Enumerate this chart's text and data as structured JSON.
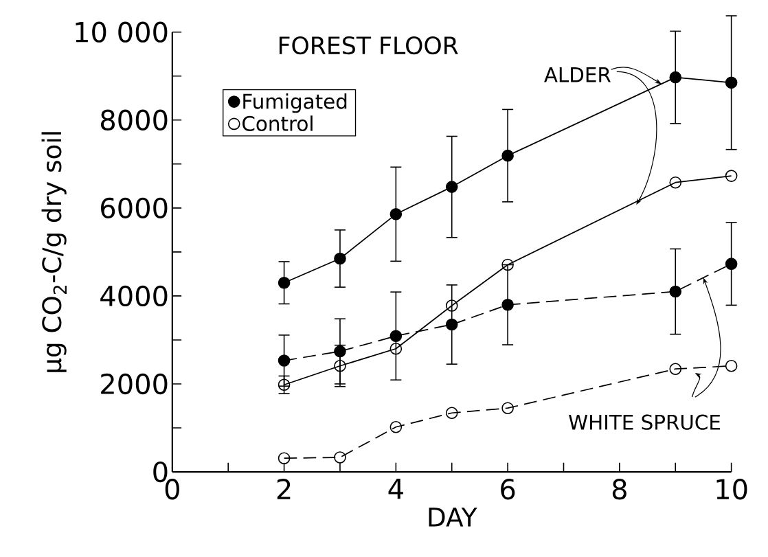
{
  "chart_data": {
    "type": "line",
    "title": "FOREST FLOOR",
    "xlabel": "DAY",
    "ylabel": "μg CO$_{2}$-C/g dry soil",
    "xlim": [
      0,
      10
    ],
    "ylim": [
      0,
      10000
    ],
    "xticks": [
      0,
      {
        "value": 1,
        "label": null
      },
      2,
      {
        "value": 3,
        "label": null
      },
      4,
      {
        "value": 5,
        "label": null
      },
      6,
      {
        "value": 7,
        "label": null
      },
      8,
      {
        "value": 9,
        "label": null
      },
      10
    ],
    "yticks": [
      0,
      {
        "value": 1000,
        "label": null
      },
      2000,
      {
        "value": 3000,
        "label": null
      },
      4000,
      {
        "value": 5000,
        "label": null
      },
      6000,
      {
        "value": 7000,
        "label": null
      },
      8000,
      {
        "value": 9000,
        "label": null
      },
      {
        "value": 10000,
        "label": "10 000"
      }
    ],
    "grid": false,
    "legend": "top left",
    "annotations": [
      {
        "text": "ALDER",
        "x": 8.75,
        "y": 8820
      },
      {
        "text": "WHITE SPRUCE",
        "x": 9.5,
        "y": 4415
      }
    ],
    "series": [
      {
        "name": "Fumigated",
        "color": "#000000",
        "marker": "circle",
        "line_style": "solid",
        "x": [
          2,
          3,
          4,
          5,
          6,
          9,
          10
        ],
        "values": [
          4300,
          4850,
          5860,
          6480,
          7190,
          8970,
          8850
        ],
        "errors": [
          480,
          650,
          1070,
          1150,
          1050,
          1050,
          1520
        ]
      },
      {
        "name": "Control",
        "color": "#000000",
        "marker": "open circle",
        "line_style": "solid",
        "x": [
          2,
          3,
          4,
          5,
          6,
          9,
          10
        ],
        "values": [
          1980,
          2410,
          2800,
          3780,
          4710,
          6580,
          6730
        ],
        "errors": [
          200,
          470,
          null,
          null,
          null,
          null,
          null
        ]
      },
      {
        "color": "#000000",
        "marker": "circle",
        "line_style": "dashed",
        "x": [
          2,
          3,
          4,
          5,
          6,
          9,
          10
        ],
        "values": [
          2530,
          2740,
          3090,
          3350,
          3800,
          4100,
          4730
        ],
        "errors": [
          580,
          740,
          1000,
          900,
          910,
          970,
          940
        ]
      },
      {
        "color": "#000000",
        "marker": "open circle",
        "line_style": "dashed",
        "x": [
          2,
          3,
          4,
          5,
          6,
          9,
          10
        ],
        "values": [
          310,
          330,
          1020,
          1340,
          1450,
          2340,
          2410
        ],
        "errors": [
          null,
          null,
          null,
          null,
          null,
          null,
          null
        ]
      }
    ]
  }
}
